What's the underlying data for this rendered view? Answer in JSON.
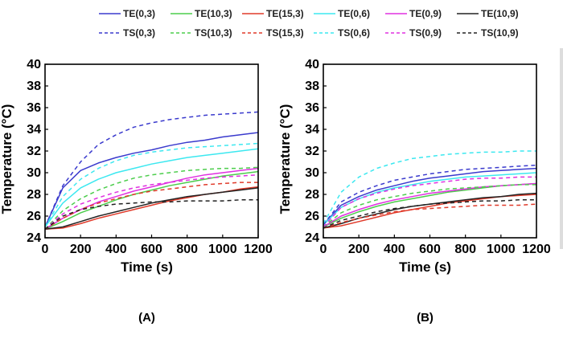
{
  "legend": [
    {
      "name": "TE(0,3)",
      "color": "#3a3acd",
      "dash": false
    },
    {
      "name": "TE(10,3)",
      "color": "#4ccd4c",
      "dash": false
    },
    {
      "name": "TE(15,3)",
      "color": "#e03a2a",
      "dash": false
    },
    {
      "name": "TE(0,6)",
      "color": "#3ce8f0",
      "dash": false
    },
    {
      "name": "TE(0,9)",
      "color": "#e030e0",
      "dash": false
    },
    {
      "name": "TE(10,9)",
      "color": "#222222",
      "dash": false
    },
    {
      "name": "TS(0,3)",
      "color": "#3a3acd",
      "dash": true
    },
    {
      "name": "TS(10,3)",
      "color": "#4ccd4c",
      "dash": true
    },
    {
      "name": "TS(15,3)",
      "color": "#e03a2a",
      "dash": true
    },
    {
      "name": "TS(0,6)",
      "color": "#3ce8f0",
      "dash": true
    },
    {
      "name": "TS(0,9)",
      "color": "#e030e0",
      "dash": true
    },
    {
      "name": "TS(10,9)",
      "color": "#222222",
      "dash": true
    }
  ],
  "chart_data": [
    {
      "type": "line",
      "panel_label": "(A)",
      "xlabel": "Time (s)",
      "ylabel": "Temperature (°C)",
      "xlim": [
        0,
        1200
      ],
      "ylim": [
        24,
        40
      ],
      "xticks": [
        0,
        200,
        400,
        600,
        800,
        1000,
        1200
      ],
      "yticks": [
        24,
        26,
        28,
        30,
        32,
        34,
        36,
        38,
        40
      ],
      "grid": false,
      "legend_position": "top",
      "x": [
        0,
        100,
        200,
        300,
        400,
        500,
        600,
        700,
        800,
        900,
        1000,
        1100,
        1200
      ],
      "series": [
        {
          "name": "TE(0,3)",
          "color": "#3a3acd",
          "dashed": false,
          "values": [
            25.0,
            28.6,
            30.2,
            30.9,
            31.4,
            31.8,
            32.1,
            32.5,
            32.8,
            33.0,
            33.3,
            33.5,
            33.7
          ]
        },
        {
          "name": "TE(10,3)",
          "color": "#4ccd4c",
          "dashed": false,
          "values": [
            24.8,
            25.5,
            26.3,
            26.9,
            27.5,
            28.0,
            28.4,
            28.8,
            29.1,
            29.4,
            29.7,
            29.9,
            30.1
          ]
        },
        {
          "name": "TE(15,3)",
          "color": "#e03a2a",
          "dashed": false,
          "values": [
            24.8,
            24.9,
            25.3,
            25.8,
            26.2,
            26.6,
            27.0,
            27.4,
            27.7,
            28.0,
            28.2,
            28.5,
            28.7
          ]
        },
        {
          "name": "TE(0,6)",
          "color": "#3ce8f0",
          "dashed": false,
          "values": [
            25.0,
            27.2,
            28.6,
            29.4,
            30.0,
            30.4,
            30.8,
            31.1,
            31.4,
            31.6,
            31.8,
            32.0,
            32.2
          ]
        },
        {
          "name": "TE(0,9)",
          "color": "#e030e0",
          "dashed": false,
          "values": [
            24.8,
            25.8,
            26.6,
            27.3,
            27.8,
            28.3,
            28.7,
            29.1,
            29.5,
            29.8,
            30.0,
            30.2,
            30.4
          ]
        },
        {
          "name": "TE(10,9)",
          "color": "#222222",
          "dashed": false,
          "values": [
            24.8,
            25.0,
            25.5,
            26.0,
            26.4,
            26.8,
            27.2,
            27.5,
            27.8,
            28.0,
            28.2,
            28.4,
            28.6
          ]
        },
        {
          "name": "TS(0,3)",
          "color": "#3a3acd",
          "dashed": true,
          "values": [
            25.0,
            28.8,
            31.0,
            32.6,
            33.5,
            34.2,
            34.6,
            34.9,
            35.1,
            35.3,
            35.4,
            35.5,
            35.6
          ]
        },
        {
          "name": "TS(10,3)",
          "color": "#4ccd4c",
          "dashed": true,
          "values": [
            24.8,
            26.5,
            27.6,
            28.4,
            29.0,
            29.5,
            29.8,
            30.0,
            30.2,
            30.3,
            30.4,
            30.4,
            30.5
          ]
        },
        {
          "name": "TS(15,3)",
          "color": "#e03a2a",
          "dashed": true,
          "values": [
            24.8,
            25.8,
            26.6,
            27.2,
            27.6,
            28.0,
            28.3,
            28.5,
            28.7,
            28.9,
            29.0,
            29.1,
            29.1
          ]
        },
        {
          "name": "TS(0,6)",
          "color": "#3ce8f0",
          "dashed": true,
          "values": [
            25.0,
            27.8,
            29.4,
            30.4,
            31.1,
            31.6,
            31.9,
            32.1,
            32.3,
            32.4,
            32.5,
            32.6,
            32.7
          ]
        },
        {
          "name": "TS(0,9)",
          "color": "#e030e0",
          "dashed": true,
          "values": [
            24.8,
            26.2,
            27.1,
            27.7,
            28.2,
            28.6,
            28.9,
            29.1,
            29.3,
            29.5,
            29.6,
            29.7,
            29.8
          ]
        },
        {
          "name": "TS(10,9)",
          "color": "#222222",
          "dashed": true,
          "values": [
            24.8,
            26.0,
            26.6,
            26.9,
            27.1,
            27.2,
            27.3,
            27.3,
            27.4,
            27.4,
            27.4,
            27.5,
            27.5
          ]
        }
      ]
    },
    {
      "type": "line",
      "panel_label": "(B)",
      "xlabel": "Time (s)",
      "ylabel": "Temperature (°C)",
      "xlim": [
        0,
        1200
      ],
      "ylim": [
        24,
        40
      ],
      "xticks": [
        0,
        200,
        400,
        600,
        800,
        1000,
        1200
      ],
      "yticks": [
        24,
        26,
        28,
        30,
        32,
        34,
        36,
        38,
        40
      ],
      "grid": false,
      "legend_position": "top",
      "x": [
        0,
        100,
        200,
        300,
        400,
        500,
        600,
        700,
        800,
        900,
        1000,
        1100,
        1200
      ],
      "series": [
        {
          "name": "TE(0,3)",
          "color": "#3a3acd",
          "dashed": false,
          "values": [
            25.2,
            27.0,
            27.8,
            28.4,
            28.8,
            29.2,
            29.5,
            29.7,
            29.9,
            30.1,
            30.2,
            30.3,
            30.4
          ]
        },
        {
          "name": "TE(10,3)",
          "color": "#4ccd4c",
          "dashed": false,
          "values": [
            25.0,
            25.8,
            26.4,
            26.9,
            27.3,
            27.6,
            27.9,
            28.2,
            28.4,
            28.6,
            28.8,
            28.9,
            29.0
          ]
        },
        {
          "name": "TE(15,3)",
          "color": "#e03a2a",
          "dashed": false,
          "values": [
            24.9,
            25.1,
            25.5,
            25.9,
            26.3,
            26.6,
            26.9,
            27.2,
            27.4,
            27.6,
            27.8,
            27.9,
            28.0
          ]
        },
        {
          "name": "TE(0,6)",
          "color": "#3ce8f0",
          "dashed": false,
          "values": [
            25.2,
            26.8,
            27.6,
            28.2,
            28.6,
            28.9,
            29.2,
            29.4,
            29.6,
            29.7,
            29.8,
            29.9,
            30.0
          ]
        },
        {
          "name": "TE(0,9)",
          "color": "#e030e0",
          "dashed": false,
          "values": [
            25.0,
            26.0,
            26.6,
            27.1,
            27.5,
            27.8,
            28.1,
            28.3,
            28.5,
            28.7,
            28.8,
            28.9,
            29.0
          ]
        },
        {
          "name": "TE(10,9)",
          "color": "#222222",
          "dashed": false,
          "values": [
            24.9,
            25.3,
            25.8,
            26.2,
            26.6,
            26.9,
            27.1,
            27.3,
            27.5,
            27.7,
            27.8,
            28.0,
            28.1
          ]
        },
        {
          "name": "TS(0,3)",
          "color": "#3a3acd",
          "dashed": true,
          "values": [
            25.2,
            27.3,
            28.2,
            28.8,
            29.3,
            29.6,
            29.9,
            30.1,
            30.3,
            30.4,
            30.5,
            30.6,
            30.7
          ]
        },
        {
          "name": "TS(10,3)",
          "color": "#4ccd4c",
          "dashed": true,
          "values": [
            25.0,
            26.3,
            27.0,
            27.5,
            27.8,
            28.1,
            28.3,
            28.5,
            28.6,
            28.7,
            28.8,
            28.9,
            28.9
          ]
        },
        {
          "name": "TS(15,3)",
          "color": "#e03a2a",
          "dashed": true,
          "values": [
            24.9,
            25.4,
            25.8,
            26.1,
            26.4,
            26.6,
            26.7,
            26.8,
            26.9,
            27.0,
            27.0,
            27.0,
            27.1
          ]
        },
        {
          "name": "TS(0,6)",
          "color": "#3ce8f0",
          "dashed": true,
          "values": [
            25.3,
            28.2,
            29.6,
            30.4,
            30.9,
            31.3,
            31.5,
            31.7,
            31.8,
            31.9,
            31.9,
            32.0,
            32.0
          ]
        },
        {
          "name": "TS(0,9)",
          "color": "#e030e0",
          "dashed": true,
          "values": [
            25.0,
            26.8,
            27.6,
            28.1,
            28.5,
            28.8,
            29.0,
            29.2,
            29.4,
            29.5,
            29.5,
            29.6,
            29.6
          ]
        },
        {
          "name": "TS(10,9)",
          "color": "#222222",
          "dashed": true,
          "values": [
            24.9,
            25.6,
            26.0,
            26.4,
            26.7,
            26.9,
            27.1,
            27.2,
            27.3,
            27.4,
            27.4,
            27.5,
            27.5
          ]
        }
      ]
    }
  ]
}
